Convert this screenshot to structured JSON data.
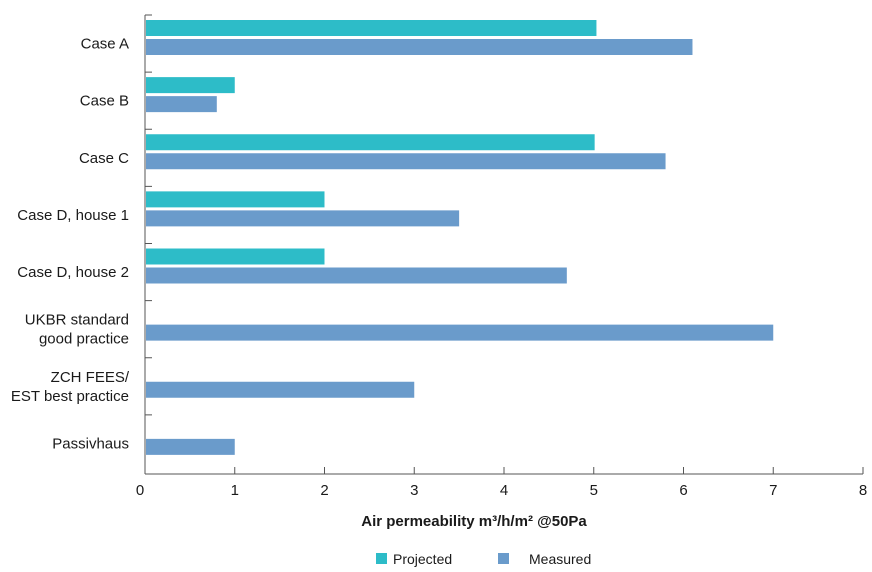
{
  "chart_data": {
    "type": "bar",
    "orientation": "horizontal",
    "categories": [
      [
        "Case A"
      ],
      [
        "Case B"
      ],
      [
        "Case C"
      ],
      [
        "Case D, house 1"
      ],
      [
        "Case D, house 2"
      ],
      [
        "UKBR standard",
        "good practice"
      ],
      [
        "ZCH FEES/",
        "EST best practice"
      ],
      [
        "Passivhaus"
      ]
    ],
    "series": [
      {
        "name": "Projected",
        "color": "#2dbcc8",
        "values": [
          5.03,
          1.0,
          5.01,
          2.0,
          2.0,
          null,
          null,
          null
        ]
      },
      {
        "name": "Measured",
        "color": "#6a9bcb",
        "values": [
          6.1,
          0.8,
          5.8,
          3.5,
          4.7,
          7.0,
          3.0,
          1.0
        ]
      }
    ],
    "xlabel": "Air permeability  m³/h/m² @50Pa",
    "xlim": [
      0,
      8
    ],
    "xticks": [
      0,
      1,
      2,
      3,
      4,
      5,
      6,
      7,
      8
    ],
    "grid": false,
    "legend": {
      "placement": "bottom-center"
    }
  }
}
